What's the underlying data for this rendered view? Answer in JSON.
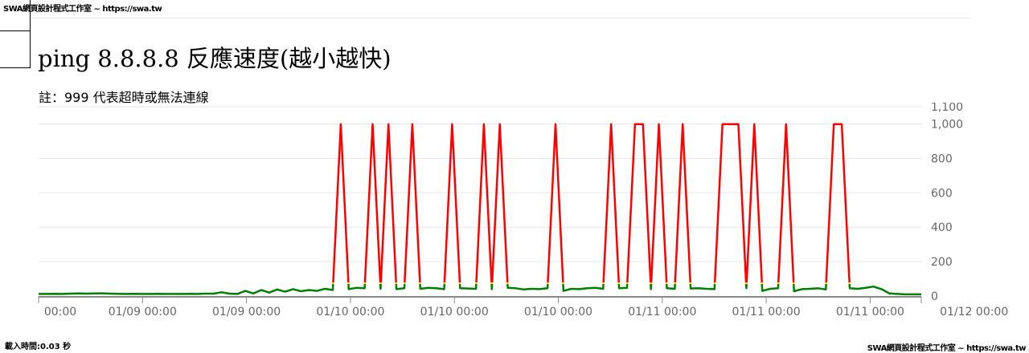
{
  "header": {
    "brand": "SWA網頁設計程式工作室 ~ https://swa.tw"
  },
  "title": "ping 8.8.8.8 反應速度(越小越快)",
  "note": "註：999 代表超時或無法連線",
  "footer": {
    "load_time": "載入時間:0.03 秒",
    "brand": "SWA網頁設計程式工作室 ~ https://swa.tw"
  },
  "chart_data": {
    "type": "line",
    "title": "",
    "xlabel": "",
    "ylabel": "",
    "ylim": [
      0,
      1100
    ],
    "yticks": [
      0,
      200,
      400,
      600,
      800,
      1000,
      1100
    ],
    "ytick_labels": [
      "0",
      "200",
      "400",
      "600",
      "800",
      "1,000",
      "1,100"
    ],
    "xtick_labels": [
      "00:00",
      "01/09 00:00",
      "01/09 00:00",
      "01/10 00:00",
      "01/10 00:00",
      "01/10 00:00",
      "01/11 00:00",
      "01/11 00:00",
      "01/11 00:00",
      "01/12 00:00"
    ],
    "grid": true,
    "timeout_value": 999,
    "colors": {
      "normal": "#008000",
      "warning": "#ffd700",
      "timeout": "#ff0000",
      "grid": "#e6e6f0",
      "axis": "#888888"
    },
    "color_thresholds": [
      70,
      80
    ],
    "values": [
      12,
      12,
      13,
      12,
      14,
      15,
      14,
      15,
      16,
      14,
      13,
      12,
      13,
      12,
      12,
      13,
      12,
      12,
      12,
      13,
      12,
      14,
      14,
      22,
      14,
      12,
      30,
      15,
      35,
      20,
      38,
      25,
      40,
      28,
      35,
      30,
      42,
      35,
      999,
      40,
      48,
      45,
      999,
      42,
      999,
      40,
      45,
      999,
      42,
      48,
      45,
      40,
      999,
      45,
      44,
      42,
      999,
      40,
      999,
      48,
      45,
      38,
      42,
      40,
      45,
      999,
      30,
      42,
      40,
      45,
      48,
      42,
      999,
      45,
      48,
      999,
      999,
      40,
      999,
      45,
      42,
      999,
      44,
      45,
      42,
      40,
      999,
      999,
      999,
      45,
      999,
      30,
      42,
      45,
      999,
      28,
      40,
      42,
      45,
      38,
      999,
      999,
      45,
      42,
      48,
      55,
      40,
      15,
      12,
      10,
      10,
      10
    ]
  }
}
